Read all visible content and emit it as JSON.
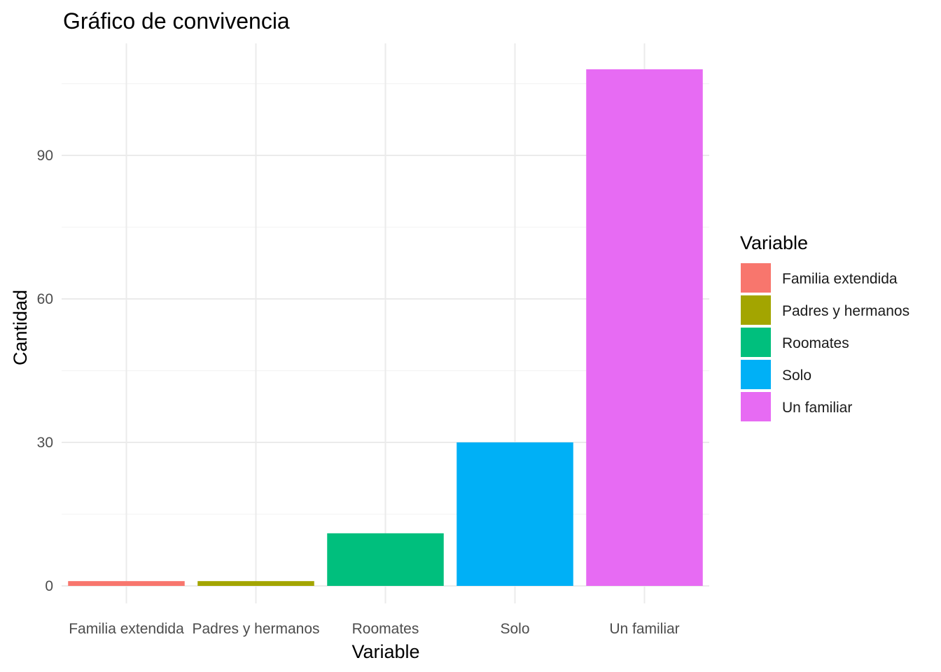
{
  "chart_data": {
    "type": "bar",
    "title": "Gráfico de convivencia",
    "xlabel": "Variable",
    "ylabel": "Cantidad",
    "categories": [
      "Familia extendida",
      "Padres y hermanos",
      "Roomates",
      "Solo",
      "Un familiar"
    ],
    "values": [
      1,
      1,
      11,
      30,
      108
    ],
    "colors": [
      "#F8766D",
      "#A3A500",
      "#00BF7D",
      "#00B0F6",
      "#E76BF3"
    ],
    "ylim": [
      0,
      113
    ],
    "yticks": [
      0,
      30,
      60,
      90
    ],
    "grid": true,
    "legend": {
      "title": "Variable",
      "position": "right",
      "items": [
        "Familia extendida",
        "Padres y hermanos",
        "Roomates",
        "Solo",
        "Un familiar"
      ]
    }
  }
}
